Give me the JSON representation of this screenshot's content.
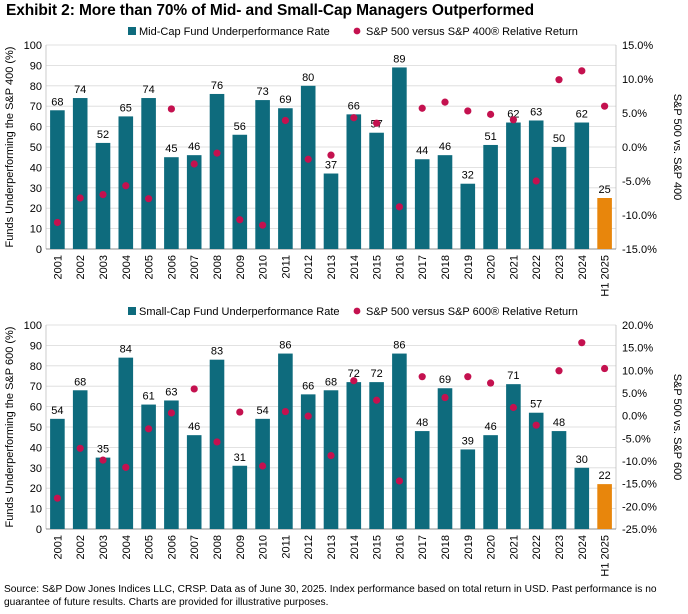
{
  "title": "Exhibit 2: More than 70% of Mid- and Small-Cap Managers Outperformed",
  "source": "Source: S&P Dow Jones Indices LLC, CRSP.  Data as of June 30, 2025.  Index performance based on total return in USD.  Past performance is no guarantee of future results.  Charts are provided for illustrative purposes.",
  "colors": {
    "bar": "#0e6b7d",
    "highlight": "#e8860c",
    "dot": "#c4114f",
    "grid": "#d9d9d9"
  },
  "chart_data": [
    {
      "type": "bar",
      "categories": [
        "2001",
        "2002",
        "2003",
        "2004",
        "2005",
        "2006",
        "2007",
        "2008",
        "2009",
        "2010",
        "2011",
        "2012",
        "2013",
        "2014",
        "2015",
        "2016",
        "2017",
        "2018",
        "2019",
        "2020",
        "2021",
        "2022",
        "2023",
        "2024",
        "H1 2025"
      ],
      "series": [
        {
          "name": "Mid-Cap Fund Underperformance Rate",
          "type": "bar",
          "axis": "left",
          "values": [
            68,
            74,
            52,
            65,
            74,
            45,
            46,
            76,
            56,
            73,
            69,
            80,
            37,
            66,
            57,
            89,
            44,
            46,
            32,
            51,
            62,
            63,
            50,
            62,
            25
          ]
        },
        {
          "name": "S&P 500 versus S&P 400® Relative Return",
          "type": "scatter",
          "axis": "right",
          "values": [
            -11.1,
            -7.5,
            -7.0,
            -5.7,
            -7.6,
            5.6,
            -2.5,
            -0.9,
            -10.7,
            -11.5,
            3.9,
            -1.8,
            -1.2,
            4.3,
            3.5,
            -8.8,
            5.7,
            6.6,
            5.3,
            4.8,
            4.0,
            -5.0,
            9.9,
            11.2,
            6.0
          ]
        }
      ],
      "highlight_category": "H1 2025",
      "ylabel": "Funds Underperforming the S&P 400 (%)",
      "ylim": [
        0,
        100
      ],
      "yticks": [
        "0",
        "10",
        "20",
        "30",
        "40",
        "50",
        "60",
        "70",
        "80",
        "90",
        "100"
      ],
      "y2label": "S&P 500 vs. S&P 400",
      "y2lim": [
        -15,
        15
      ],
      "y2ticks": [
        "-15.0%",
        "-10.0%",
        "-5.0%",
        "0.0%",
        "5.0%",
        "10.0%",
        "15.0%"
      ],
      "grid": true,
      "legend": "top"
    },
    {
      "type": "bar",
      "categories": [
        "2001",
        "2002",
        "2003",
        "2004",
        "2005",
        "2006",
        "2007",
        "2008",
        "2009",
        "2010",
        "2011",
        "2012",
        "2013",
        "2014",
        "2015",
        "2016",
        "2017",
        "2018",
        "2019",
        "2020",
        "2021",
        "2022",
        "2023",
        "2024",
        "H1 2025"
      ],
      "series": [
        {
          "name": "Small-Cap Fund Underperformance Rate",
          "type": "bar",
          "axis": "left",
          "values": [
            54,
            68,
            35,
            84,
            61,
            63,
            46,
            83,
            31,
            54,
            86,
            66,
            68,
            72,
            72,
            86,
            48,
            69,
            39,
            46,
            71,
            57,
            48,
            30,
            22
          ]
        },
        {
          "name": "S&P 500 versus S&P 600® Relative Return",
          "type": "scatter",
          "axis": "right",
          "values": [
            -18.2,
            -7.2,
            -9.8,
            -11.4,
            -2.9,
            0.6,
            5.9,
            -5.8,
            0.8,
            -11.1,
            0.9,
            -0.1,
            -8.8,
            7.7,
            3.4,
            -14.4,
            8.6,
            4.0,
            8.6,
            7.2,
            1.8,
            -2.1,
            9.9,
            16.1,
            10.4
          ]
        }
      ],
      "highlight_category": "H1 2025",
      "ylabel": "Funds Underperforming the S&P 600 (%)",
      "ylim": [
        0,
        100
      ],
      "yticks": [
        "0",
        "10",
        "20",
        "30",
        "40",
        "50",
        "60",
        "70",
        "80",
        "90",
        "100"
      ],
      "y2label": "S&P 500 vs. S&P 600",
      "y2lim": [
        -25,
        20
      ],
      "y2ticks": [
        "-25.0%",
        "-20.0%",
        "-15.0%",
        "-10.0%",
        "-5.0%",
        "0.0%",
        "5.0%",
        "10.0%",
        "15.0%",
        "20.0%"
      ],
      "grid": true,
      "legend": "top"
    }
  ]
}
